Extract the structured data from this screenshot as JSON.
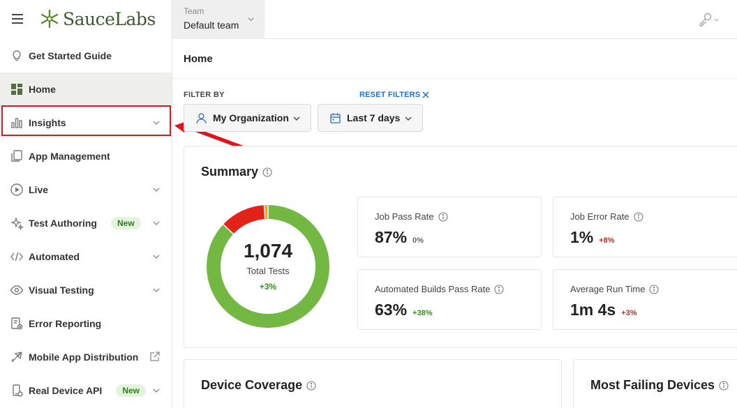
{
  "brand": {
    "name": "SauceLabs"
  },
  "topbar": {
    "team_caption": "Team",
    "team_value": "Default team"
  },
  "sidebar": {
    "items": [
      {
        "label": "Get Started Guide"
      },
      {
        "label": "Home"
      },
      {
        "label": "Insights"
      },
      {
        "label": "App Management"
      },
      {
        "label": "Live"
      },
      {
        "label": "Test Authoring",
        "badge": "New"
      },
      {
        "label": "Automated"
      },
      {
        "label": "Visual Testing"
      },
      {
        "label": "Error Reporting"
      },
      {
        "label": "Mobile App Distribution"
      },
      {
        "label": "Real Device API",
        "badge": "New"
      }
    ]
  },
  "main": {
    "title": "Home",
    "filter_by": "FILTER BY",
    "reset_filters": "RESET FILTERS",
    "org_filter": "My Organization",
    "date_filter": "Last 7 days"
  },
  "summary": {
    "title": "Summary",
    "total": "1,074",
    "total_label": "Total Tests",
    "total_delta": "+3%",
    "chart_data": {
      "type": "pie",
      "style": "donut",
      "slices": [
        {
          "value": 87,
          "color": "#72b843"
        },
        {
          "value": 12,
          "color": "#e2231a"
        },
        {
          "value": 1,
          "color": "#f0a22e"
        }
      ]
    },
    "metrics": [
      {
        "label": "Job Pass Rate",
        "value": "87%",
        "delta": "0%",
        "tone": "neutral"
      },
      {
        "label": "Job Error Rate",
        "value": "1%",
        "delta": "+8%",
        "tone": "up-bad"
      },
      {
        "label": "Automated Builds Pass Rate",
        "value": "63%",
        "delta": "+38%",
        "tone": "up-good"
      },
      {
        "label": "Average Run Time",
        "value": "1m 4s",
        "delta": "+3%",
        "tone": "up-bad"
      }
    ]
  },
  "device_coverage": {
    "title": "Device Coverage"
  },
  "most_failing": {
    "title": "Most Failing Devices"
  },
  "colors": {
    "accent": "#1f6fd0",
    "highlight": "#e0151a",
    "pass": "#72b843",
    "fail": "#e2231a",
    "error": "#f0a22e"
  },
  "icons": [
    "hamburger-icon",
    "saucelabs-logo-icon",
    "lightbulb-icon",
    "home-grid-icon",
    "bar-chart-icon",
    "app-management-icon",
    "play-circle-icon",
    "sparkle-icon",
    "code-icon",
    "eye-icon",
    "error-report-icon",
    "plane-icon",
    "external-link-icon",
    "phone-api-icon",
    "key-icon",
    "user-icon",
    "calendar-icon",
    "info-icon",
    "close-icon",
    "chevron-down-icon"
  ]
}
